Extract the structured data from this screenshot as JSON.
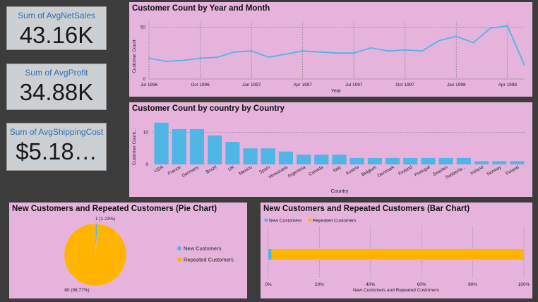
{
  "cards": [
    {
      "label": "Sum of AvgNetSales",
      "value": "43.16K"
    },
    {
      "label": "Sum of AvgProfit",
      "value": "34.88K"
    },
    {
      "label": "Sum of AvgShippingCost",
      "value": "$5.18…"
    }
  ],
  "colors": {
    "background": "#3c3c3c",
    "panel": "#e6b3dd",
    "accent_blue": "#4fb6e6",
    "accent_orange": "#ffb400"
  },
  "chart_data": [
    {
      "type": "line",
      "title": "Customer Count by Year and Month",
      "xlabel": "Year",
      "ylabel": "Customer Count",
      "x": [
        "Jul 1996",
        "Aug 1996",
        "Sep 1996",
        "Oct 1996",
        "Nov 1996",
        "Dec 1996",
        "Jan 1997",
        "Feb 1997",
        "Mar 1997",
        "Apr 1997",
        "May 1997",
        "Jun 1997",
        "Jul 1997",
        "Aug 1997",
        "Sep 1997",
        "Oct 1997",
        "Nov 1997",
        "Dec 1997",
        "Jan 1998",
        "Feb 1998",
        "Mar 1998",
        "Apr 1998",
        "May 1998"
      ],
      "values": [
        20,
        17,
        18,
        20,
        21,
        26,
        27,
        21,
        24,
        27,
        26,
        25,
        25,
        30,
        27,
        28,
        27,
        37,
        41,
        35,
        49,
        51,
        13
      ],
      "x_ticks": [
        "Jul 1996",
        "Oct 1996",
        "Jan 1997",
        "Apr 1997",
        "Jul 1997",
        "Oct 1997",
        "Jan 1998",
        "Apr 1998"
      ],
      "y_ticks": [
        "0",
        "50"
      ],
      "ylim": [
        0,
        55
      ]
    },
    {
      "type": "bar",
      "title": "Customer Count by country by Country",
      "xlabel": "Country",
      "ylabel": "Customer Count...",
      "categories": [
        "USA",
        "France",
        "Germany",
        "Brazil",
        "UK",
        "Mexico",
        "Spain",
        "Venezuela",
        "Argentina",
        "Canada",
        "Italy",
        "Austria",
        "Belgium",
        "Denmark",
        "Finland",
        "Portugal",
        "Sweden",
        "Switzerla...",
        "Ireland",
        "Norway",
        "Poland"
      ],
      "values": [
        13,
        11,
        11,
        9,
        7,
        5,
        5,
        4,
        3,
        3,
        3,
        2,
        2,
        2,
        2,
        2,
        2,
        2,
        1,
        1,
        1
      ],
      "y_ticks": [
        "0",
        "10"
      ],
      "ylim": [
        0,
        14.5
      ]
    },
    {
      "type": "pie",
      "title": "New Customers and Repeated Customers (Pie Chart)",
      "slices": [
        {
          "name": "New Customers",
          "value": 1,
          "label": "1 (1.23%)"
        },
        {
          "name": "Repeated Customers",
          "value": 80,
          "label": "80 (98.77%)"
        }
      ],
      "legend": [
        "New Customers",
        "Repeated Customers"
      ]
    },
    {
      "type": "bar",
      "title": "New Customers and Repeated Customers (Bar Chart)",
      "orientation": "horizontal-stacked-100",
      "xlabel": "New Customers and Repeated Customers",
      "series": [
        {
          "name": "New Customers",
          "values": [
            1
          ]
        },
        {
          "name": "Repeated Customers",
          "values": [
            80
          ]
        }
      ],
      "x_ticks": [
        "0%",
        "20%",
        "40%",
        "60%",
        "80%",
        "100%"
      ]
    }
  ]
}
